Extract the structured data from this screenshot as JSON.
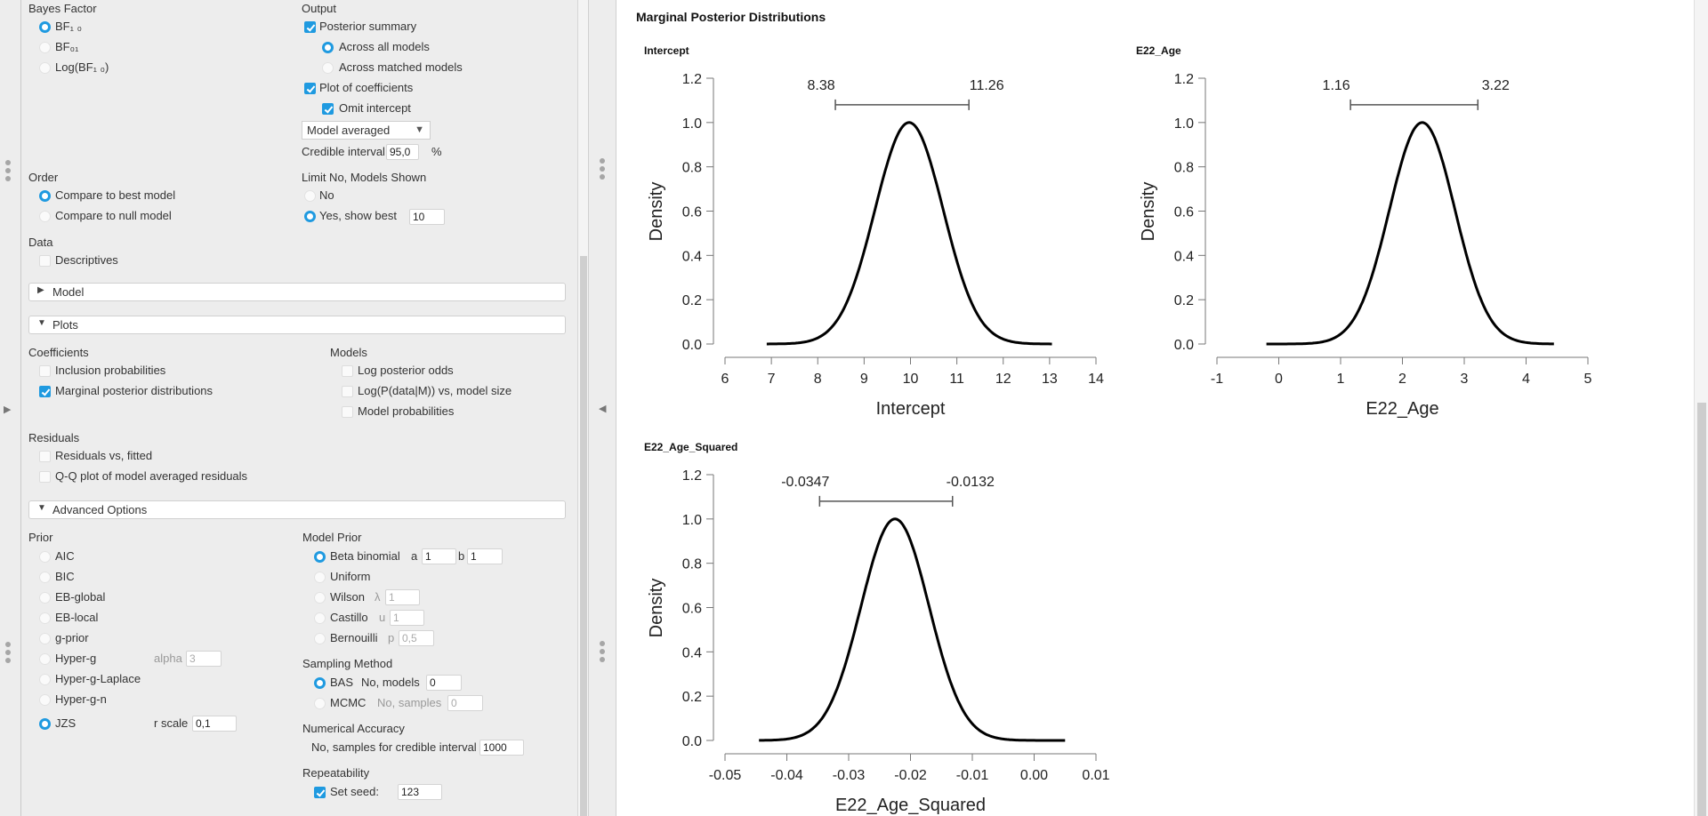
{
  "left": {
    "bayes_factor": {
      "title": "Bayes Factor",
      "options": [
        "BF₁ ₀",
        "BF₀₁",
        "Log(BF₁ ₀)"
      ],
      "selected": 0
    },
    "output": {
      "title": "Output",
      "posterior_summary": "Posterior summary",
      "across_all": "Across all models",
      "across_matched": "Across matched models",
      "plot_coefficients": "Plot of coefficients",
      "omit_intercept": "Omit intercept",
      "dropdown_value": "Model averaged",
      "credible_label": "Credible interval",
      "credible_value": "95,0",
      "credible_unit": "%"
    },
    "order": {
      "title": "Order",
      "options": [
        "Compare to best model",
        "Compare to null model"
      ]
    },
    "limit": {
      "title": "Limit No, Models Shown",
      "no": "No",
      "yes": "Yes, show best",
      "value": "10"
    },
    "data": {
      "title": "Data",
      "descriptives": "Descriptives"
    },
    "sections": {
      "model": "Model",
      "plots": "Plots",
      "advanced": "Advanced Options"
    },
    "plots": {
      "coefficients": "Coefficients",
      "inclusion": "Inclusion probabilities",
      "marginal": "Marginal posterior distributions",
      "models": "Models",
      "log_posterior": "Log posterior odds",
      "log_p": "Log(P(data|M)) vs, model size",
      "model_probs": "Model probabilities",
      "residuals": "Residuals",
      "res_vs_fitted": "Residuals vs, fitted",
      "qq": "Q-Q plot of model averaged residuals"
    },
    "prior": {
      "title": "Prior",
      "options": [
        "AIC",
        "BIC",
        "EB-global",
        "EB-local",
        "g-prior",
        "Hyper-g",
        "Hyper-g-Laplace",
        "Hyper-g-n",
        "JZS"
      ],
      "alpha_label": "alpha",
      "alpha_value": "3",
      "rscale_label": "r scale",
      "rscale_value": "0,1"
    },
    "model_prior": {
      "title": "Model Prior",
      "beta": "Beta binomial",
      "a_label": "a",
      "a_value": "1",
      "b_label": "b",
      "b_value": "1",
      "uniform": "Uniform",
      "wilson": "Wilson",
      "lambda_label": "λ",
      "lambda_value": "1",
      "castillo": "Castillo",
      "u_label": "u",
      "u_value": "1",
      "bernoulli": "Bernouilli",
      "p_label": "p",
      "p_value": "0,5"
    },
    "sampling": {
      "title": "Sampling Method",
      "bas": "BAS",
      "models_label": "No, models",
      "models_value": "0",
      "mcmc": "MCMC",
      "samples_label": "No, samples",
      "samples_value": "0"
    },
    "accuracy": {
      "title": "Numerical Accuracy",
      "label": "No, samples for credible interval",
      "value": "1000"
    },
    "repeat": {
      "title": "Repeatability",
      "label": "Set seed:",
      "value": "123"
    }
  },
  "results": {
    "heading": "Marginal Posterior Distributions"
  },
  "colors": {
    "accent": "#1f9ae0",
    "curve": "#000000",
    "ci": "#555555"
  },
  "chart_data": [
    {
      "type": "line",
      "title": "Intercept",
      "xlabel": "Intercept",
      "ylabel": "Density",
      "xticks": [
        "6",
        "7",
        "8",
        "9",
        "10",
        "11",
        "12",
        "13",
        "14"
      ],
      "xlim": [
        6,
        14
      ],
      "yticks": [
        "0.0",
        "0.2",
        "0.4",
        "0.6",
        "0.8",
        "1.0",
        "1.2"
      ],
      "ylim": [
        0,
        1.2
      ],
      "ci": [
        8.38,
        11.26
      ],
      "ci_labels": [
        "8.38",
        "11.26"
      ],
      "density_shape": {
        "kind": "normal",
        "mean": 9.97,
        "sd": 0.735,
        "peak": 1.0,
        "x_range": [
          6.9,
          13.05
        ]
      }
    },
    {
      "type": "line",
      "title": "E22_Age",
      "xlabel": "E22_Age",
      "ylabel": "Density",
      "xticks": [
        "-1",
        "0",
        "1",
        "2",
        "3",
        "4",
        "5"
      ],
      "xlim": [
        -1,
        5
      ],
      "yticks": [
        "0.0",
        "0.2",
        "0.4",
        "0.6",
        "0.8",
        "1.0",
        "1.2"
      ],
      "ylim": [
        0,
        1.2
      ],
      "ci": [
        1.16,
        3.22
      ],
      "ci_labels": [
        "1.16",
        "3.22"
      ],
      "density_shape": {
        "kind": "normal",
        "mean": 2.32,
        "sd": 0.53,
        "peak": 1.0,
        "x_range": [
          -0.2,
          4.45
        ]
      }
    },
    {
      "type": "line",
      "title": "E22_Age_Squared",
      "xlabel": "E22_Age_Squared",
      "ylabel": "Density",
      "xticks": [
        "-0.05",
        "-0.04",
        "-0.03",
        "-0.02",
        "-0.01",
        "0.00",
        "0.01"
      ],
      "xlim": [
        -0.05,
        0.01
      ],
      "yticks": [
        "0.0",
        "0.2",
        "0.4",
        "0.6",
        "0.8",
        "1.0",
        "1.2"
      ],
      "ylim": [
        0,
        1.2
      ],
      "ci": [
        -0.0347,
        -0.0132
      ],
      "ci_labels": [
        "-0.0347",
        "-0.0132"
      ],
      "density_shape": {
        "kind": "normal",
        "mean": -0.0225,
        "sd": 0.0055,
        "peak": 1.0,
        "x_range": [
          -0.0445,
          0.005
        ]
      }
    }
  ]
}
